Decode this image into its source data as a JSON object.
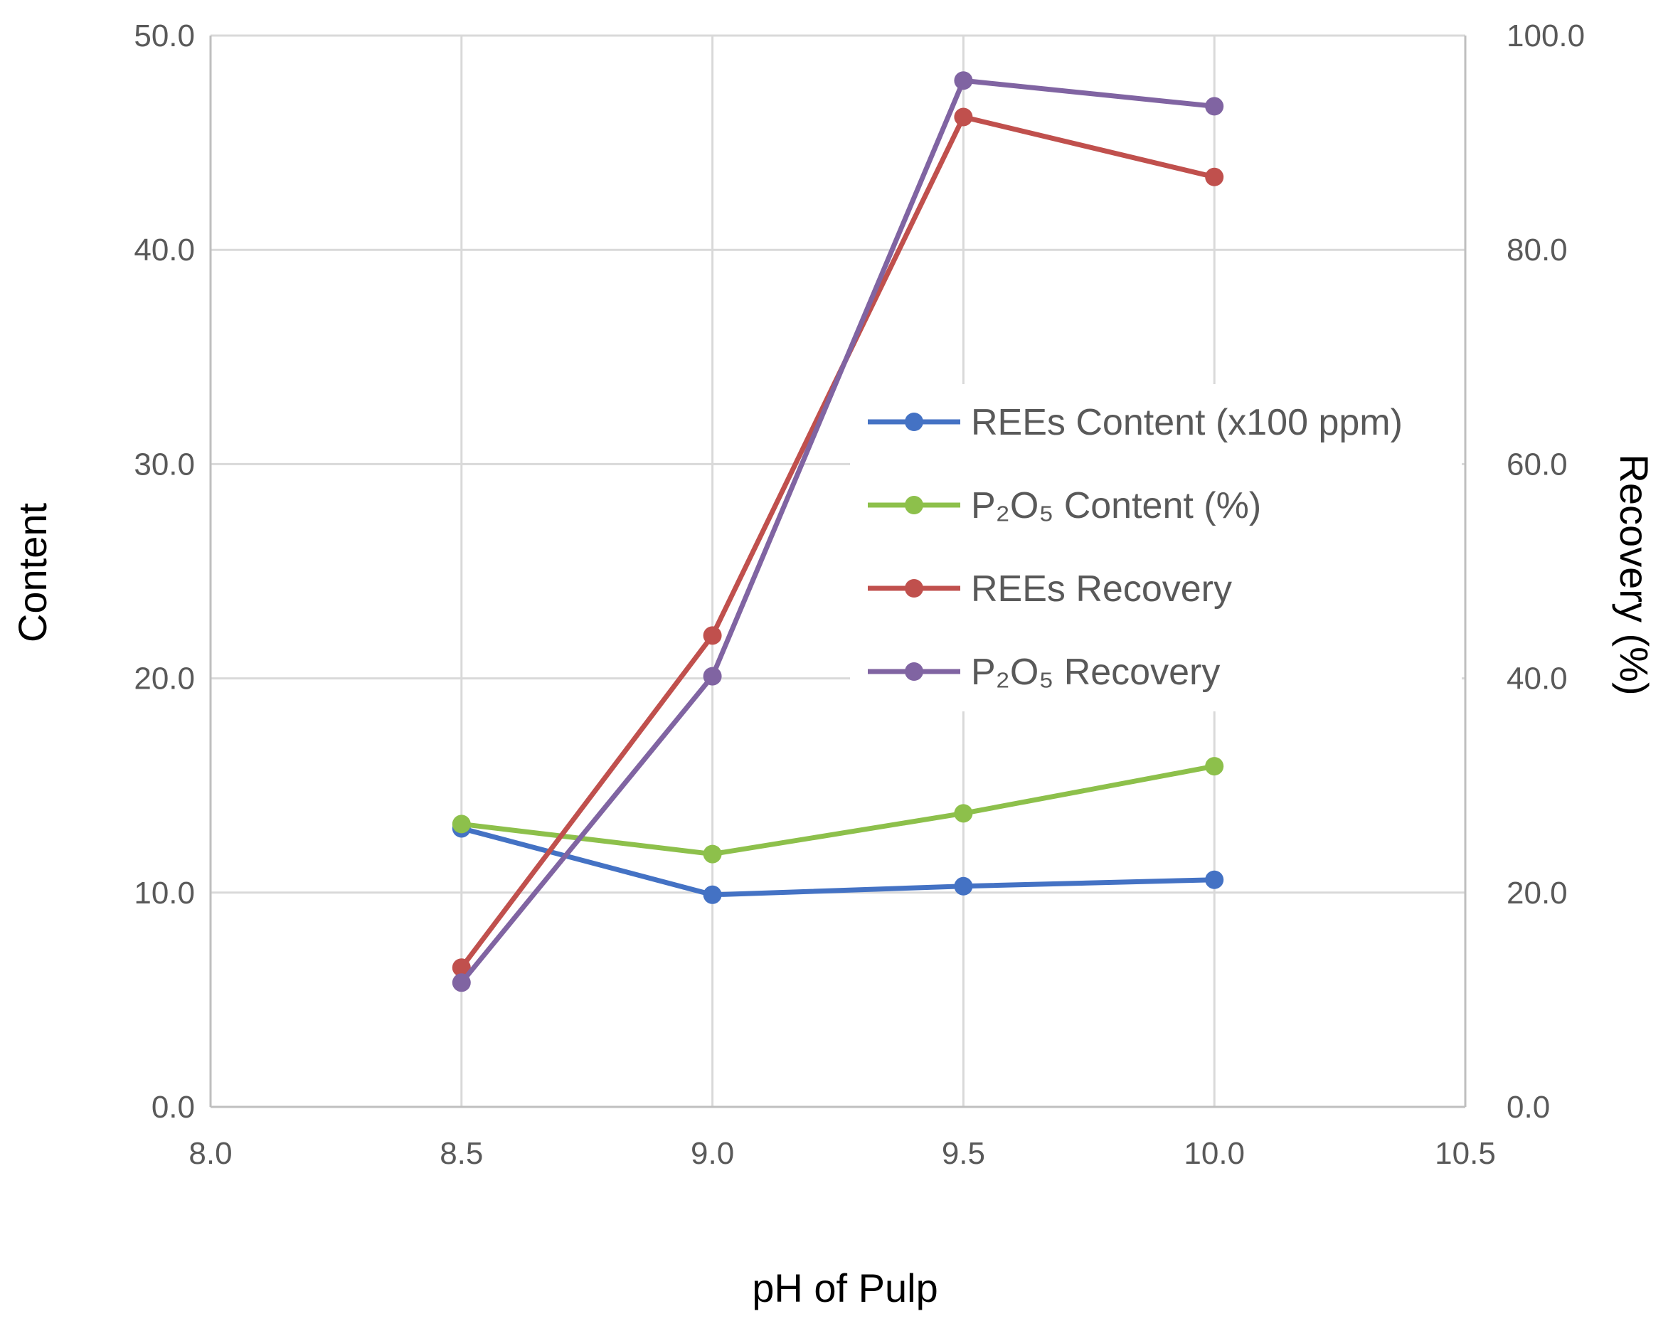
{
  "chart_data": {
    "type": "line",
    "x": [
      8.5,
      9.0,
      9.5,
      10.0
    ],
    "xlabel": "pH of Pulp",
    "ylabel": "Content",
    "y2label": "Recovery (%)",
    "xlim": [
      8.0,
      10.5
    ],
    "ylim": [
      0,
      50
    ],
    "y2lim": [
      0,
      100
    ],
    "xticks": [
      "8.0",
      "8.5",
      "9.0",
      "9.5",
      "10.0",
      "10.5"
    ],
    "yticks": [
      "0.0",
      "10.0",
      "20.0",
      "30.0",
      "40.0",
      "50.0"
    ],
    "y2ticks": [
      "0.0",
      "20.0",
      "40.0",
      "60.0",
      "80.0",
      "100.0"
    ],
    "grid": true,
    "legend_position": "center-right",
    "series": [
      {
        "name": "REEs Content (x100 ppm)",
        "axis": "left",
        "color": "#4472C4",
        "values": [
          13.0,
          9.9,
          10.3,
          10.6
        ]
      },
      {
        "name": "P₂O₅ Content (%)",
        "axis": "left",
        "color": "#8DC04B",
        "values": [
          13.2,
          11.8,
          13.7,
          15.9
        ]
      },
      {
        "name": "REEs Recovery",
        "axis": "right",
        "color": "#C0504D",
        "values": [
          13.0,
          44.0,
          92.4,
          86.8
        ]
      },
      {
        "name": "P₂O₅ Recovery",
        "axis": "right",
        "color": "#8064A2",
        "values": [
          11.6,
          40.2,
          95.8,
          93.4
        ]
      }
    ]
  }
}
